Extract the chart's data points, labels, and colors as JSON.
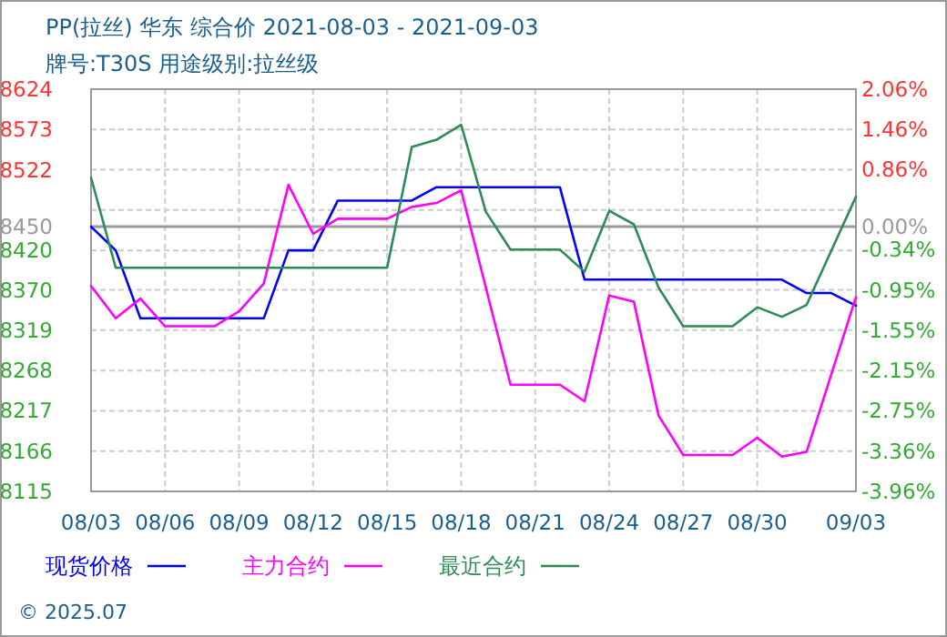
{
  "chart_data": {
    "type": "line",
    "title": "PP(拉丝) 华东 综合价 2021-08-03 - 2021-09-03",
    "subtitle": "牌号:T30S 用途级别:拉丝级",
    "xlim": [
      "2021-08-03",
      "2021-09-03"
    ],
    "xticks": [
      {
        "value": "2021-08-03",
        "label": "08/03"
      },
      {
        "value": "2021-08-06",
        "label": "08/06"
      },
      {
        "value": "2021-08-09",
        "label": "08/09"
      },
      {
        "value": "2021-08-12",
        "label": "08/12"
      },
      {
        "value": "2021-08-15",
        "label": "08/15"
      },
      {
        "value": "2021-08-18",
        "label": "08/18"
      },
      {
        "value": "2021-08-21",
        "label": "08/21"
      },
      {
        "value": "2021-08-24",
        "label": "08/24"
      },
      {
        "value": "2021-08-27",
        "label": "08/27"
      },
      {
        "value": "2021-08-30",
        "label": "08/30"
      },
      {
        "value": "2021-09-03",
        "label": "09/03"
      }
    ],
    "ylim": [
      8115,
      8624
    ],
    "yticks": [
      8624,
      8573,
      8522,
      {
        "value": 8471,
        "label": null
      },
      8450,
      8420,
      8370,
      8319,
      8268,
      8217,
      8166,
      8115
    ],
    "y2lim": [
      -3.96,
      2.06
    ],
    "y2ticks": [
      {
        "value": 2.06,
        "label": "2.06%"
      },
      {
        "value": 1.46,
        "label": "1.46%"
      },
      {
        "value": 0.86,
        "label": "0.86%"
      },
      {
        "value": 0,
        "label": "0.00%"
      },
      {
        "value": -0.34,
        "label": "-0.34%"
      },
      {
        "value": -0.95,
        "label": "-0.95%"
      },
      {
        "value": -1.55,
        "label": "-1.55%"
      },
      {
        "value": -2.15,
        "label": "-2.15%"
      },
      {
        "value": -2.75,
        "label": "-2.75%"
      },
      {
        "value": -3.36,
        "label": "-3.36%"
      },
      {
        "value": -3.96,
        "label": "-3.96%"
      }
    ],
    "ref_lines": [
      {
        "axis": "y",
        "value": 8450,
        "color": "#999999"
      }
    ],
    "grid": true,
    "legend": "bottom",
    "series": [
      {
        "name": "现货价格",
        "color": "#0000ff",
        "x": [
          "2021-08-03",
          "2021-08-04",
          "2021-08-05",
          "2021-08-10",
          "2021-08-11",
          "2021-08-12",
          "2021-08-13",
          "2021-08-16",
          "2021-08-17",
          "2021-08-22",
          "2021-08-23",
          "2021-08-31",
          "2021-09-01",
          "2021-09-02",
          "2021-09-03"
        ],
        "values": [
          8450,
          8420,
          8334,
          8334,
          8420,
          8420,
          8483,
          8483,
          8500,
          8500,
          8383,
          8383,
          8366,
          8366,
          8350
        ]
      },
      {
        "name": "主力合约",
        "color": "#ff00ff",
        "x": [
          "2021-08-03",
          "2021-08-04",
          "2021-08-05",
          "2021-08-06",
          "2021-08-08",
          "2021-08-09",
          "2021-08-10",
          "2021-08-11",
          "2021-08-12",
          "2021-08-13",
          "2021-08-15",
          "2021-08-16",
          "2021-08-17",
          "2021-08-18",
          "2021-08-20",
          "2021-08-22",
          "2021-08-23",
          "2021-08-24",
          "2021-08-25",
          "2021-08-26",
          "2021-08-27",
          "2021-08-29",
          "2021-08-30",
          "2021-08-31",
          "2021-09-01",
          "2021-09-03"
        ],
        "values": [
          8375,
          8334,
          8359,
          8324,
          8324,
          8343,
          8378,
          8503,
          8441,
          8460,
          8460,
          8475,
          8480,
          8496,
          8250,
          8250,
          8229,
          8363,
          8355,
          8211,
          8161,
          8161,
          8183,
          8159,
          8165,
          8361
        ]
      },
      {
        "name": "最近合约",
        "color": "#2e8b57",
        "x": [
          "2021-08-03",
          "2021-08-04",
          "2021-08-15",
          "2021-08-16",
          "2021-08-17",
          "2021-08-18",
          "2021-08-19",
          "2021-08-20",
          "2021-08-22",
          "2021-08-23",
          "2021-08-24",
          "2021-08-25",
          "2021-08-26",
          "2021-08-27",
          "2021-08-29",
          "2021-08-30",
          "2021-08-31",
          "2021-09-01",
          "2021-09-03"
        ],
        "values": [
          8512,
          8398,
          8398,
          8551,
          8560,
          8579,
          8469,
          8421,
          8421,
          8393,
          8470,
          8453,
          8373,
          8324,
          8324,
          8348,
          8336,
          8351,
          8488
        ]
      }
    ],
    "annotations": [
      "© 2025.07"
    ]
  }
}
